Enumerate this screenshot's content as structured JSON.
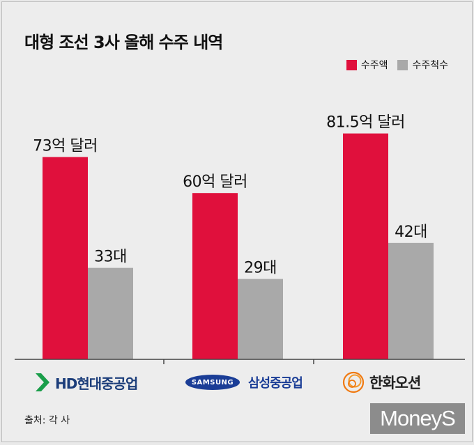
{
  "title": "대형 조선 3사 올해 수주 내역",
  "legend": [
    {
      "label": "수주액",
      "color": "#e0103c"
    },
    {
      "label": "수주척수",
      "color": "#a9a9a9"
    }
  ],
  "chart_data": {
    "type": "bar",
    "title": "대형 조선 3사 올해 수주 내역",
    "categories": [
      "HD현대중공업",
      "삼성중공업",
      "한화오션"
    ],
    "series": [
      {
        "name": "수주액",
        "unit": "억 달러",
        "values": [
          73,
          60,
          81.5
        ],
        "labels": [
          "73억 달러",
          "60억 달러",
          "81.5억 달러"
        ],
        "color": "#e0103c"
      },
      {
        "name": "수주척수",
        "unit": "대",
        "values": [
          33,
          29,
          42
        ],
        "labels": [
          "33대",
          "29대",
          "42대"
        ],
        "color": "#a9a9a9"
      }
    ],
    "legend_position": "top-right",
    "grid": false
  },
  "companies": {
    "hd": {
      "name": "HD현대중공업"
    },
    "samsung": {
      "badge": "SAMSUNG",
      "name": "삼성중공업"
    },
    "hanwha": {
      "name": "한화오션"
    }
  },
  "source": "출처: 각 사",
  "watermark": "MoneyS"
}
